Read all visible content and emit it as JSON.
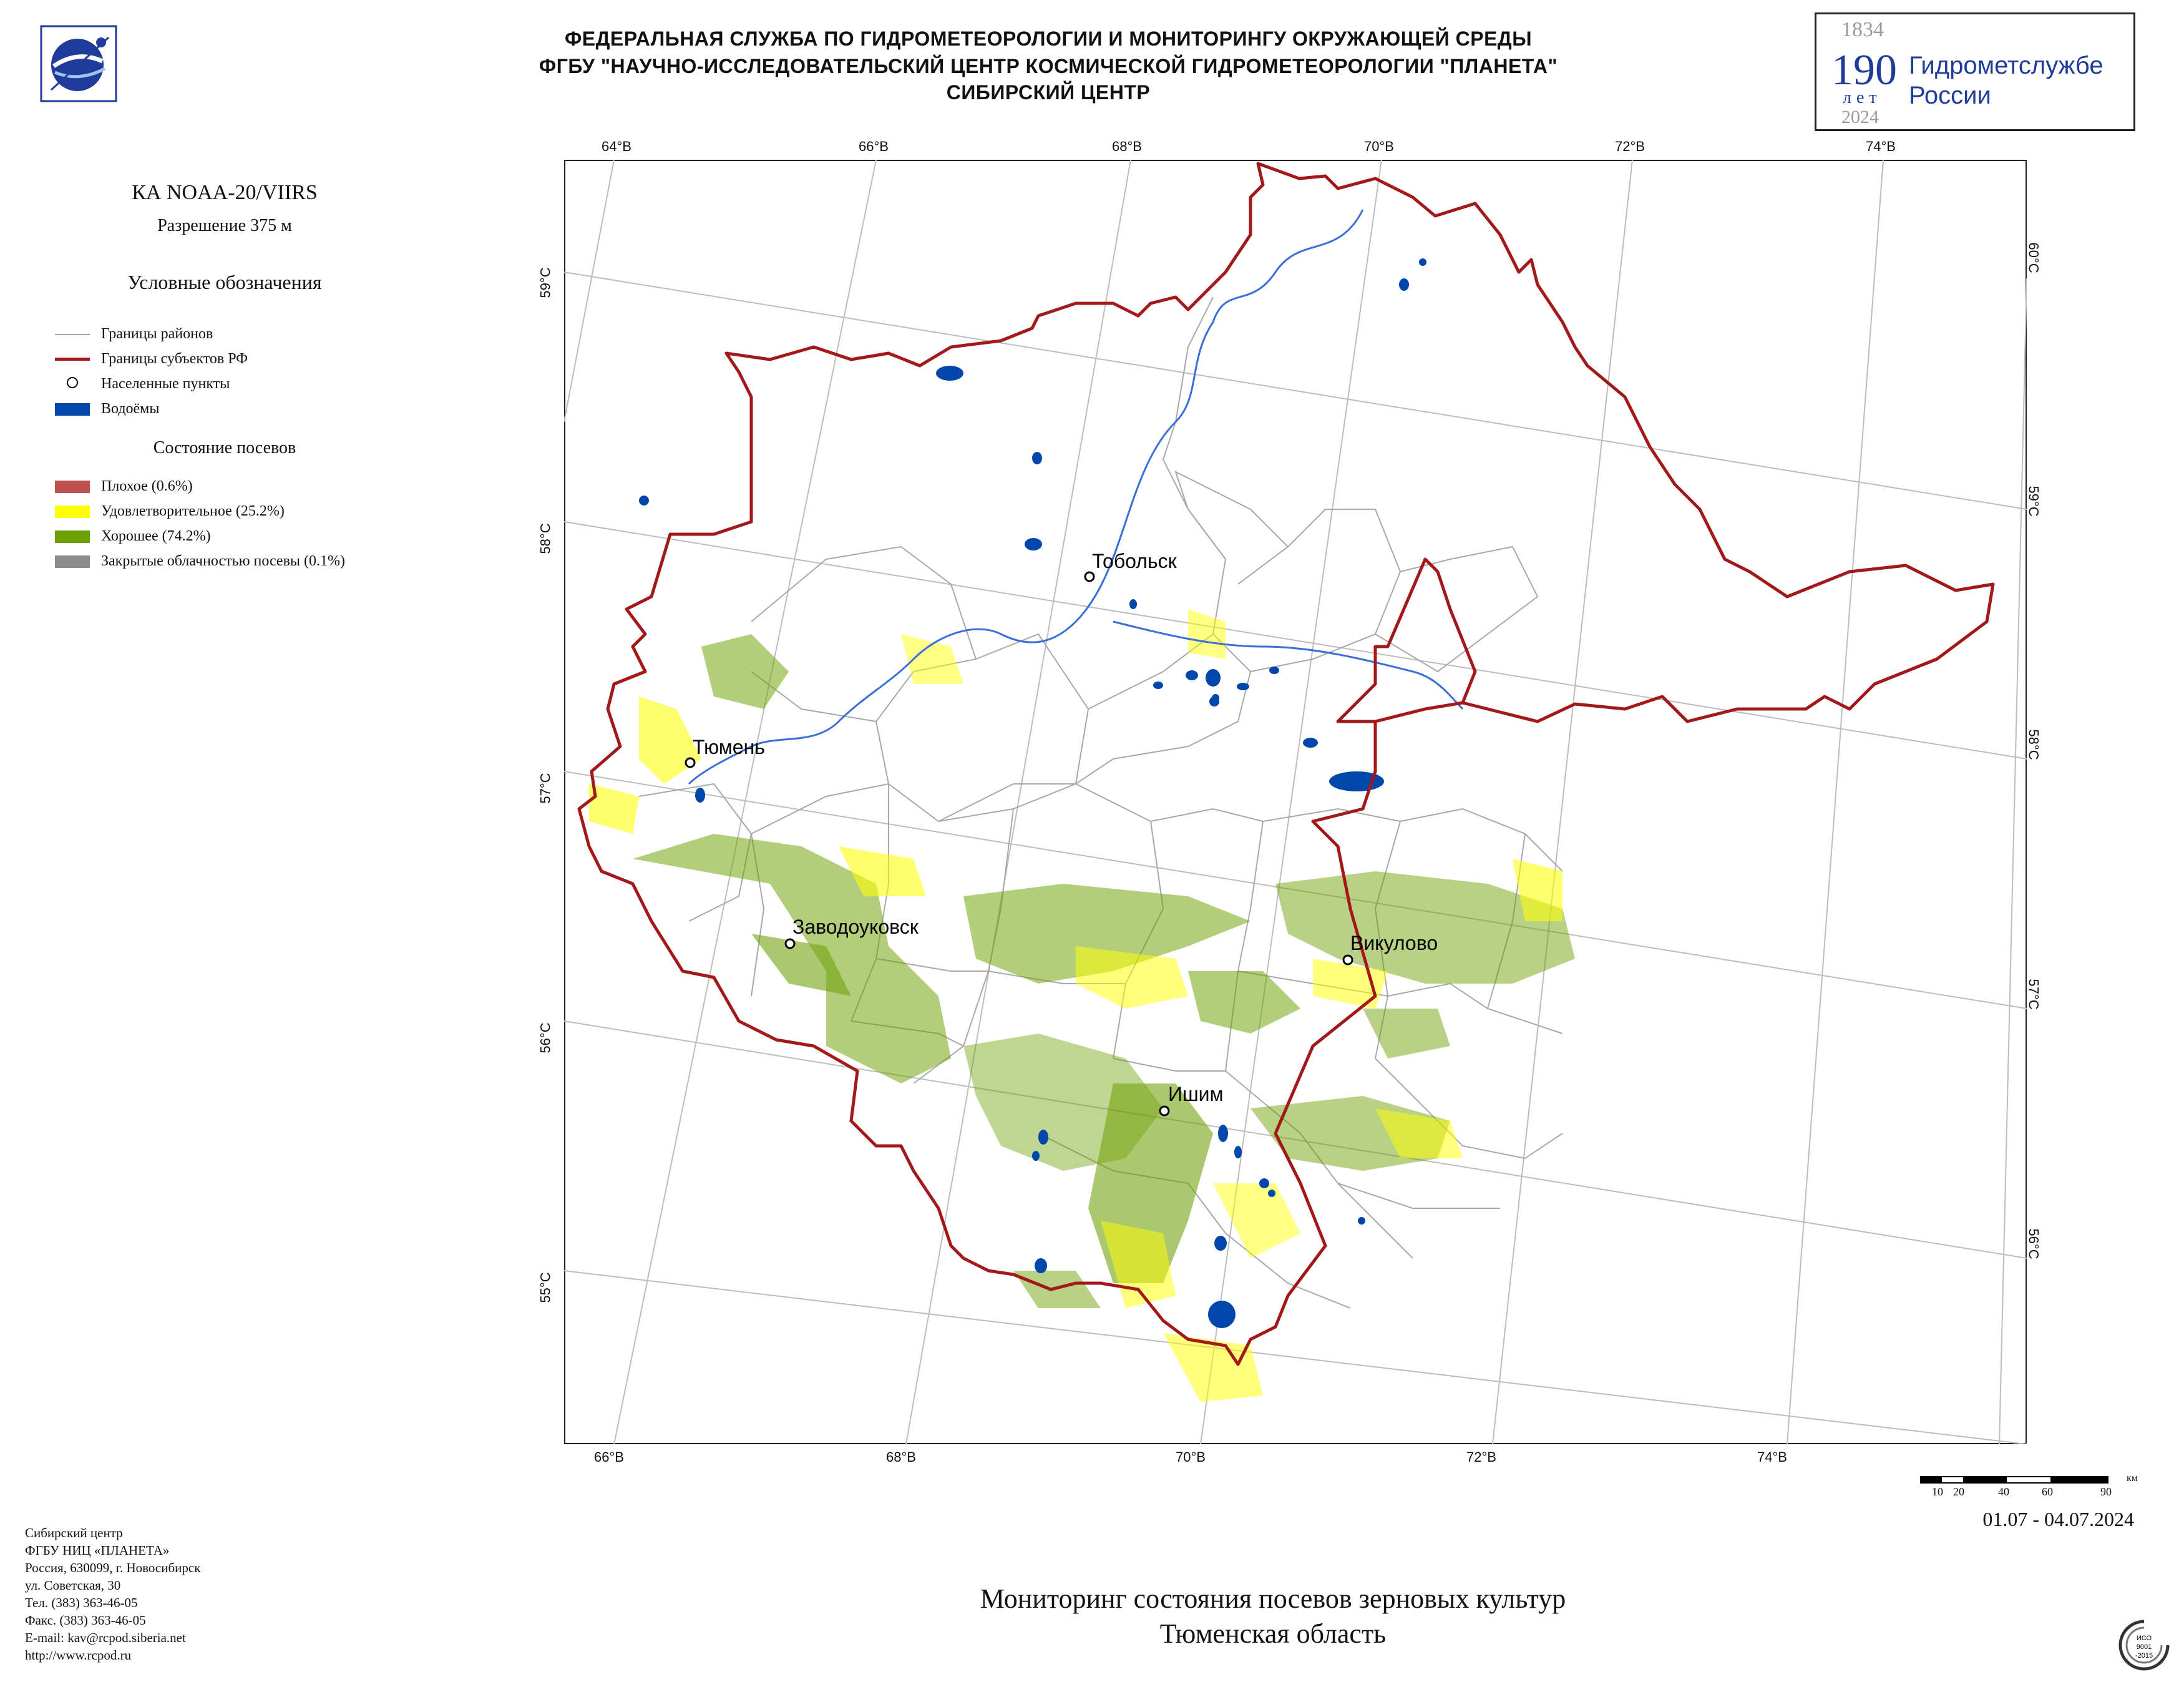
{
  "header": {
    "line1": "ФЕДЕРАЛЬНАЯ СЛУЖБА ПО ГИДРОМЕТЕОРОЛОГИИ И МОНИТОРИНГУ ОКРУЖАЮЩЕЙ СРЕДЫ",
    "line2": "ФГБУ \"НАУЧНО-ИССЛЕДОВАТЕЛЬСКИЙ ЦЕНТР КОСМИЧЕСКОЙ ГИДРОМЕТЕОРОЛОГИИ \"ПЛАНЕТА\"",
    "line3": "СИБИРСКИЙ ЦЕНТР"
  },
  "anniversary": {
    "year_start": "1834",
    "number": "190",
    "years_word": "лет",
    "year_end": "2024",
    "text1": "Гидрометслужбе",
    "text2": "России"
  },
  "satellite": {
    "name": "КА NOAA-20/VIIRS",
    "resolution": "Разрешение 375 м"
  },
  "legend": {
    "title": "Условные обозначения",
    "items": [
      {
        "label": "Границы районов",
        "color": "#a0a0a0",
        "kind": "line-thin"
      },
      {
        "label": "Границы субъектов РФ",
        "color": "#a31919",
        "kind": "line-thick"
      },
      {
        "label": "Населенные пункты",
        "color": "#000000",
        "kind": "circle"
      },
      {
        "label": "Водоёмы",
        "color": "#0047ab",
        "kind": "box"
      }
    ],
    "crops_title": "Состояние посевов",
    "crops": [
      {
        "label": "Плохое (0.6%)",
        "color": "#c0504d"
      },
      {
        "label": "Удовлетворительное (25.2%)",
        "color": "#ffff00"
      },
      {
        "label": "Хорошее (74.2%)",
        "color": "#6aa000"
      },
      {
        "label": "Закрытые облачностью посевы (0.1%)",
        "color": "#8c8c8c"
      }
    ]
  },
  "map": {
    "top_ticks": [
      "64°В",
      "66°В",
      "68°В",
      "70°В",
      "72°В",
      "74°В"
    ],
    "bottom_ticks": [
      "66°В",
      "68°В",
      "70°В",
      "72°В",
      "74°В"
    ],
    "left_ticks": [
      "59°С",
      "58°С",
      "57°С",
      "56°С",
      "55°С"
    ],
    "right_ticks": [
      "60°С",
      "59°С",
      "58°С",
      "57°С",
      "56°С"
    ],
    "cities": [
      {
        "name": "Тобольск"
      },
      {
        "name": "Тюмень"
      },
      {
        "name": "Заводоуковск"
      },
      {
        "name": "Викулово"
      },
      {
        "name": "Ишим"
      }
    ]
  },
  "scale": {
    "labels": [
      "10",
      "20",
      "40",
      "60",
      "90"
    ],
    "unit": "км"
  },
  "date_range": "01.07 - 04.07.2024",
  "contact": [
    "Сибирский центр",
    "ФГБУ НИЦ «ПЛАНЕТА»",
    "Россия, 630099, г. Новосибирск",
    "ул. Советская, 30",
    "Тел. (383) 363-46-05",
    "Факс. (383) 363-46-05",
    "E-mail: kav@rcpod.siberia.net",
    "http://www.rcpod.ru"
  ],
  "title": {
    "line1": "Мониторинг состояния посевов зерновых культур",
    "line2": "Тюменская область"
  },
  "iso_badge": {
    "line1": "ИСО",
    "line2": "9001",
    "line3": "-2015"
  }
}
